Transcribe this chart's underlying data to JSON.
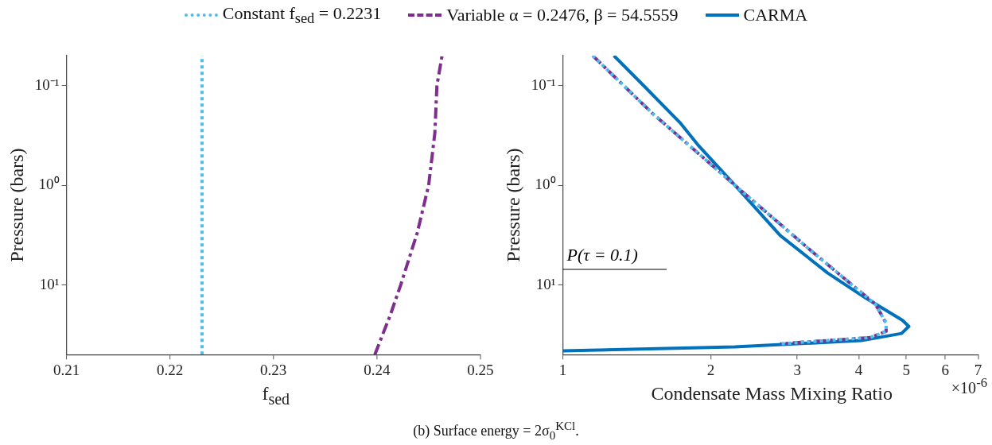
{
  "chart_data": [
    {
      "type": "line",
      "xlabel": "f$_{sed}$",
      "ylabel": "Pressure (bars)",
      "log": "y",
      "xlim": [
        0.21,
        0.25
      ],
      "xticks": [
        0.21,
        0.22,
        0.23,
        0.24,
        0.25
      ],
      "ylim": [
        50,
        0.05
      ],
      "yticks": [
        {
          "value": 0.1,
          "label": "10⁻¹"
        },
        {
          "value": 1,
          "label": "10⁰"
        },
        {
          "value": 10,
          "label": "10¹"
        }
      ],
      "grid": false,
      "series": [
        {
          "color": "#4dbeee",
          "line_style": "dotted",
          "x": [
            0.2231,
            0.2231
          ],
          "values": [
            50,
            0.05
          ]
        },
        {
          "color": "#7e2f8e",
          "line_style": "dashed",
          "x": [
            0.2398,
            0.2413,
            0.2423,
            0.2439,
            0.245,
            0.2456,
            0.2458,
            0.2463
          ],
          "values": [
            50,
            20,
            10,
            3,
            1,
            0.3,
            0.1,
            0.05
          ]
        }
      ]
    },
    {
      "type": "line",
      "xlabel": "Condensate Mass Mixing Ratio",
      "ylabel": "Pressure (bars)",
      "log": "xy",
      "xlim": [
        1,
        7
      ],
      "xticks": [
        1,
        2,
        3,
        4,
        5,
        6,
        7
      ],
      "ylim": [
        50,
        0.05
      ],
      "yticks": [
        {
          "value": 0.1,
          "label": "10⁻¹"
        },
        {
          "value": 1,
          "label": "10⁰"
        },
        {
          "value": 10,
          "label": "10¹"
        }
      ],
      "grid": false,
      "legend": "top",
      "annotations": [
        "×10$^{-6}$",
        "(b) Surface energy = 2σ$_{0}$$^{KCl}$.",
        "P(τ = 0.1)"
      ],
      "ref_lines": [
        {
          "axis": "y",
          "value": 7,
          "color": "#000000"
        }
      ],
      "series": [
        {
          "name": "Constant f$_{sed}$ = 0.2231",
          "color": "#4dbeee",
          "line_style": "dotted",
          "x": [
            1.15,
            1.52,
            2.24,
            3.21,
            4.33,
            4.55,
            4.55,
            4.23,
            2.77
          ],
          "values": [
            0.05,
            0.189,
            1,
            4.6,
            15.7,
            24.3,
            29.2,
            33.7,
            39
          ]
        },
        {
          "name": "Variable α = 0.2476, β = 54.5559",
          "color": "#7e2f8e",
          "line_style": "dashed",
          "x": [
            1.15,
            1.52,
            2.24,
            3.21,
            4.33,
            4.55,
            4.55,
            4.23,
            2.77
          ],
          "values": [
            0.05,
            0.189,
            1,
            4.6,
            15.7,
            24.3,
            29.2,
            33.7,
            39
          ]
        },
        {
          "name": "CARMA",
          "color": "#0072bd",
          "line_style": "solid",
          "x": [
            1.27,
            1.46,
            1.73,
            1.88,
            2.24,
            2.77,
            3.46,
            4.14,
            4.91,
            5.06,
            4.89,
            4.05,
            2.24,
            1.0
          ],
          "values": [
            0.05,
            0.1,
            0.234,
            0.39,
            1,
            3.19,
            7.6,
            13.6,
            22.6,
            26.1,
            30.7,
            36.2,
            41.9,
            45.8
          ]
        }
      ]
    }
  ]
}
